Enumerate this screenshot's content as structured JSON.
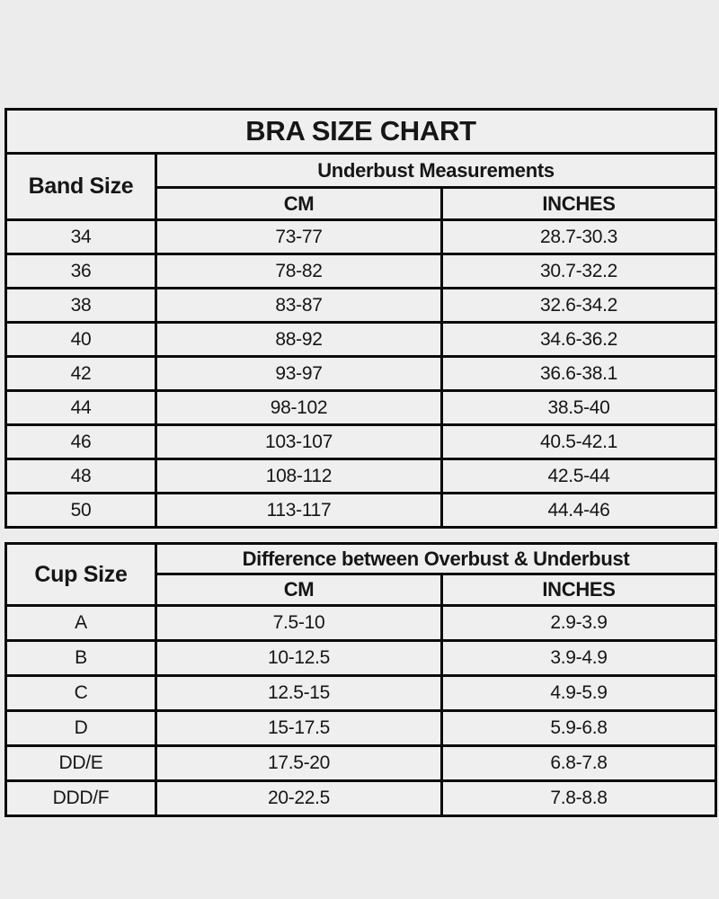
{
  "page": {
    "background_color": "#ececec",
    "header_bg_color": "#ebe7cf",
    "row_bg_color": "#efefef",
    "border_color": "#0c0c0c"
  },
  "chart_data": [
    {
      "type": "table",
      "title": "BRA SIZE CHART",
      "corner_header": "Band Size",
      "group_header": "Underbust Measurements",
      "columns": [
        "CM",
        "INCHES"
      ],
      "rows": [
        [
          "34",
          "73-77",
          "28.7-30.3"
        ],
        [
          "36",
          "78-82",
          "30.7-32.2"
        ],
        [
          "38",
          "83-87",
          "32.6-34.2"
        ],
        [
          "40",
          "88-92",
          "34.6-36.2"
        ],
        [
          "42",
          "93-97",
          "36.6-38.1"
        ],
        [
          "44",
          "98-102",
          "38.5-40"
        ],
        [
          "46",
          "103-107",
          "40.5-42.1"
        ],
        [
          "48",
          "108-112",
          "42.5-44"
        ],
        [
          "50",
          "113-117",
          "44.4-46"
        ]
      ]
    },
    {
      "type": "table",
      "title": "",
      "corner_header": "Cup Size",
      "group_header": "Difference between Overbust & Underbust",
      "columns": [
        "CM",
        "INCHES"
      ],
      "rows": [
        [
          "A",
          "7.5-10",
          "2.9-3.9"
        ],
        [
          "B",
          "10-12.5",
          "3.9-4.9"
        ],
        [
          "C",
          "12.5-15",
          "4.9-5.9"
        ],
        [
          "D",
          "15-17.5",
          "5.9-6.8"
        ],
        [
          "DD/E",
          "17.5-20",
          "6.8-7.8"
        ],
        [
          "DDD/F",
          "20-22.5",
          "7.8-8.8"
        ]
      ]
    }
  ]
}
